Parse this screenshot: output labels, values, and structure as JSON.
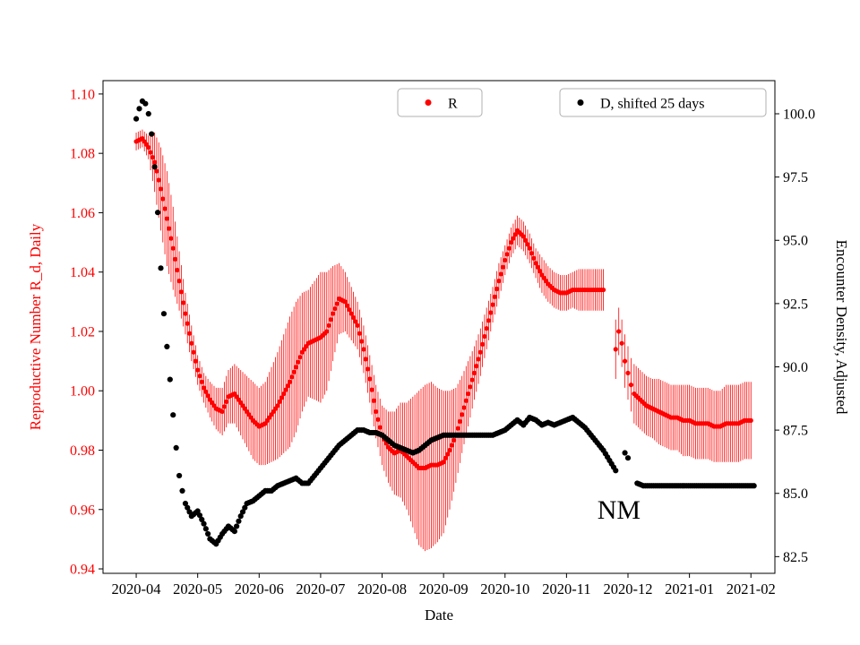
{
  "chart_data": {
    "type": "scatter",
    "title": "",
    "xlabel": "Date",
    "x_unit": "months since 2020-04-01",
    "x_range": [
      -0.54,
      10.39
    ],
    "x_ticks": {
      "positions": [
        0,
        1,
        2,
        3,
        4,
        5,
        6,
        7,
        8,
        9,
        10
      ],
      "labels": [
        "2020-04",
        "2020-05",
        "2020-06",
        "2020-07",
        "2020-08",
        "2020-09",
        "2020-10",
        "2020-11",
        "2020-12",
        "2021-01",
        "2021-02"
      ]
    },
    "y_left": {
      "label": "Reproductive Number R_d, Daily",
      "color": "#ff0000",
      "range": [
        0.9385,
        1.1045
      ],
      "ticks": [
        0.94,
        0.96,
        0.98,
        1.0,
        1.02,
        1.04,
        1.06,
        1.08,
        1.1
      ],
      "tick_labels": [
        "0.94",
        "0.96",
        "0.98",
        "1.00",
        "1.02",
        "1.04",
        "1.06",
        "1.08",
        "1.10"
      ]
    },
    "y_right": {
      "label": "Encounter Density, Adjusted",
      "color": "#000000",
      "range": [
        81.84,
        101.31
      ],
      "ticks": [
        82.5,
        85.0,
        87.5,
        90.0,
        92.5,
        95.0,
        97.5,
        100.0
      ],
      "tick_labels": [
        "82.5",
        "85.0",
        "87.5",
        "90.0",
        "92.5",
        "95.0",
        "97.5",
        "100.0"
      ]
    },
    "legend": [
      {
        "label": "R",
        "marker_color": "#ff0000"
      },
      {
        "label": "D, shifted 25 days",
        "marker_color": "#000000"
      }
    ],
    "annotations": [
      {
        "text": "NM",
        "x": 7.5,
        "y": 84.0,
        "axis": "right",
        "font_size": 30,
        "color": "#000000"
      }
    ],
    "series": [
      {
        "name": "R",
        "color": "#ff0000",
        "axis": "left",
        "marker": "dot",
        "segments": [
          {
            "x0": 0.0,
            "dx": 0.1,
            "y": [
              1.084,
              1.085,
              1.082,
              1.077,
              1.068,
              1.058,
              1.048,
              1.037,
              1.026,
              1.016,
              1.007,
              1.001,
              0.997,
              0.994,
              0.993,
              0.998,
              0.999,
              0.996,
              0.993,
              0.99,
              0.988,
              0.989,
              0.992,
              0.995,
              0.999,
              1.003,
              1.008,
              1.013,
              1.016,
              1.017,
              1.018,
              1.02,
              1.026,
              1.031,
              1.03,
              1.026,
              1.022,
              1.014,
              1.004,
              0.993,
              0.985,
              0.981,
              0.979,
              0.98,
              0.978,
              0.976,
              0.974,
              0.974,
              0.975,
              0.975,
              0.976,
              0.98,
              0.985,
              0.992,
              0.999,
              1.006,
              1.013,
              1.021,
              1.029,
              1.037,
              1.044,
              1.05,
              1.054,
              1.052,
              1.048,
              1.043,
              1.039,
              1.036,
              1.034,
              1.033,
              1.033,
              1.034,
              1.034,
              1.034,
              1.034,
              1.034,
              1.034
            ],
            "err": [
              0.003,
              0.003,
              0.004,
              0.01,
              0.014,
              0.016,
              0.014,
              0.01,
              0.007,
              0.006,
              0.005,
              0.005,
              0.006,
              0.007,
              0.008,
              0.009,
              0.01,
              0.011,
              0.012,
              0.013,
              0.013,
              0.014,
              0.016,
              0.018,
              0.02,
              0.022,
              0.022,
              0.02,
              0.018,
              0.02,
              0.022,
              0.02,
              0.016,
              0.012,
              0.01,
              0.009,
              0.008,
              0.008,
              0.008,
              0.009,
              0.01,
              0.012,
              0.014,
              0.016,
              0.018,
              0.022,
              0.026,
              0.028,
              0.028,
              0.026,
              0.024,
              0.02,
              0.016,
              0.013,
              0.011,
              0.009,
              0.008,
              0.007,
              0.006,
              0.006,
              0.005,
              0.005,
              0.005,
              0.005,
              0.005,
              0.005,
              0.006,
              0.006,
              0.006,
              0.006,
              0.006,
              0.006,
              0.007,
              0.007,
              0.007,
              0.007,
              0.007
            ]
          },
          {
            "x": [
              7.8,
              7.85,
              7.9,
              7.95,
              8.0,
              8.05,
              8.1,
              8.2,
              8.3,
              8.4,
              8.5,
              8.6,
              8.7,
              8.8,
              8.9,
              9.0,
              9.1,
              9.2,
              9.3,
              9.4,
              9.5,
              9.6,
              9.7,
              9.8,
              9.9,
              10.0
            ],
            "y": [
              1.014,
              1.02,
              1.016,
              1.01,
              1.006,
              1.002,
              0.999,
              0.997,
              0.995,
              0.994,
              0.993,
              0.992,
              0.991,
              0.991,
              0.99,
              0.99,
              0.989,
              0.989,
              0.989,
              0.988,
              0.988,
              0.989,
              0.989,
              0.989,
              0.99,
              0.99
            ],
            "err": [
              0.01,
              0.008,
              0.008,
              0.009,
              0.009,
              0.009,
              0.01,
              0.01,
              0.01,
              0.01,
              0.011,
              0.011,
              0.011,
              0.011,
              0.012,
              0.012,
              0.012,
              0.012,
              0.012,
              0.012,
              0.012,
              0.013,
              0.013,
              0.013,
              0.013,
              0.013
            ]
          }
        ]
      },
      {
        "name": "D, shifted 25 days",
        "color": "#000000",
        "axis": "right",
        "marker": "dot",
        "segments": [
          {
            "x0": 0.0,
            "dx": 0.05,
            "y": [
              99.8,
              100.2,
              100.5,
              100.4,
              100.0,
              99.2,
              97.9,
              96.1,
              93.9,
              92.1,
              90.8,
              89.5,
              88.1,
              86.8,
              85.7,
              85.1,
              84.6
            ]
          },
          {
            "x0": 0.9,
            "dx": 0.1,
            "y": [
              84.1,
              84.3,
              83.8,
              83.2,
              83.0,
              83.4,
              83.7,
              83.5,
              84.1,
              84.6,
              84.7,
              84.9,
              85.1,
              85.1,
              85.3,
              85.4,
              85.5,
              85.6,
              85.4,
              85.4,
              85.7,
              86.0,
              86.3,
              86.6,
              86.9,
              87.1,
              87.3,
              87.5,
              87.5,
              87.4,
              87.4,
              87.3,
              87.1,
              86.9,
              86.8,
              86.7,
              86.6,
              86.7,
              86.9,
              87.1,
              87.2,
              87.3,
              87.3,
              87.3,
              87.3,
              87.3,
              87.3,
              87.3,
              87.3,
              87.3,
              87.4,
              87.5,
              87.7,
              87.9,
              87.7,
              88.0,
              87.9,
              87.7,
              87.8,
              87.7,
              87.8,
              87.9,
              88.0,
              87.8,
              87.6,
              87.3,
              87.0,
              86.7,
              86.3,
              85.9
            ]
          },
          {
            "x": [
              7.95,
              8.0
            ],
            "y": [
              86.6,
              86.4
            ]
          },
          {
            "x0": 8.15,
            "dx": 0.1,
            "y": [
              85.4,
              85.3,
              85.3,
              85.3,
              85.3,
              85.3,
              85.3,
              85.3,
              85.3,
              85.3,
              85.3,
              85.3,
              85.3,
              85.3,
              85.3,
              85.3,
              85.3,
              85.3,
              85.3,
              85.3
            ]
          }
        ]
      }
    ]
  }
}
